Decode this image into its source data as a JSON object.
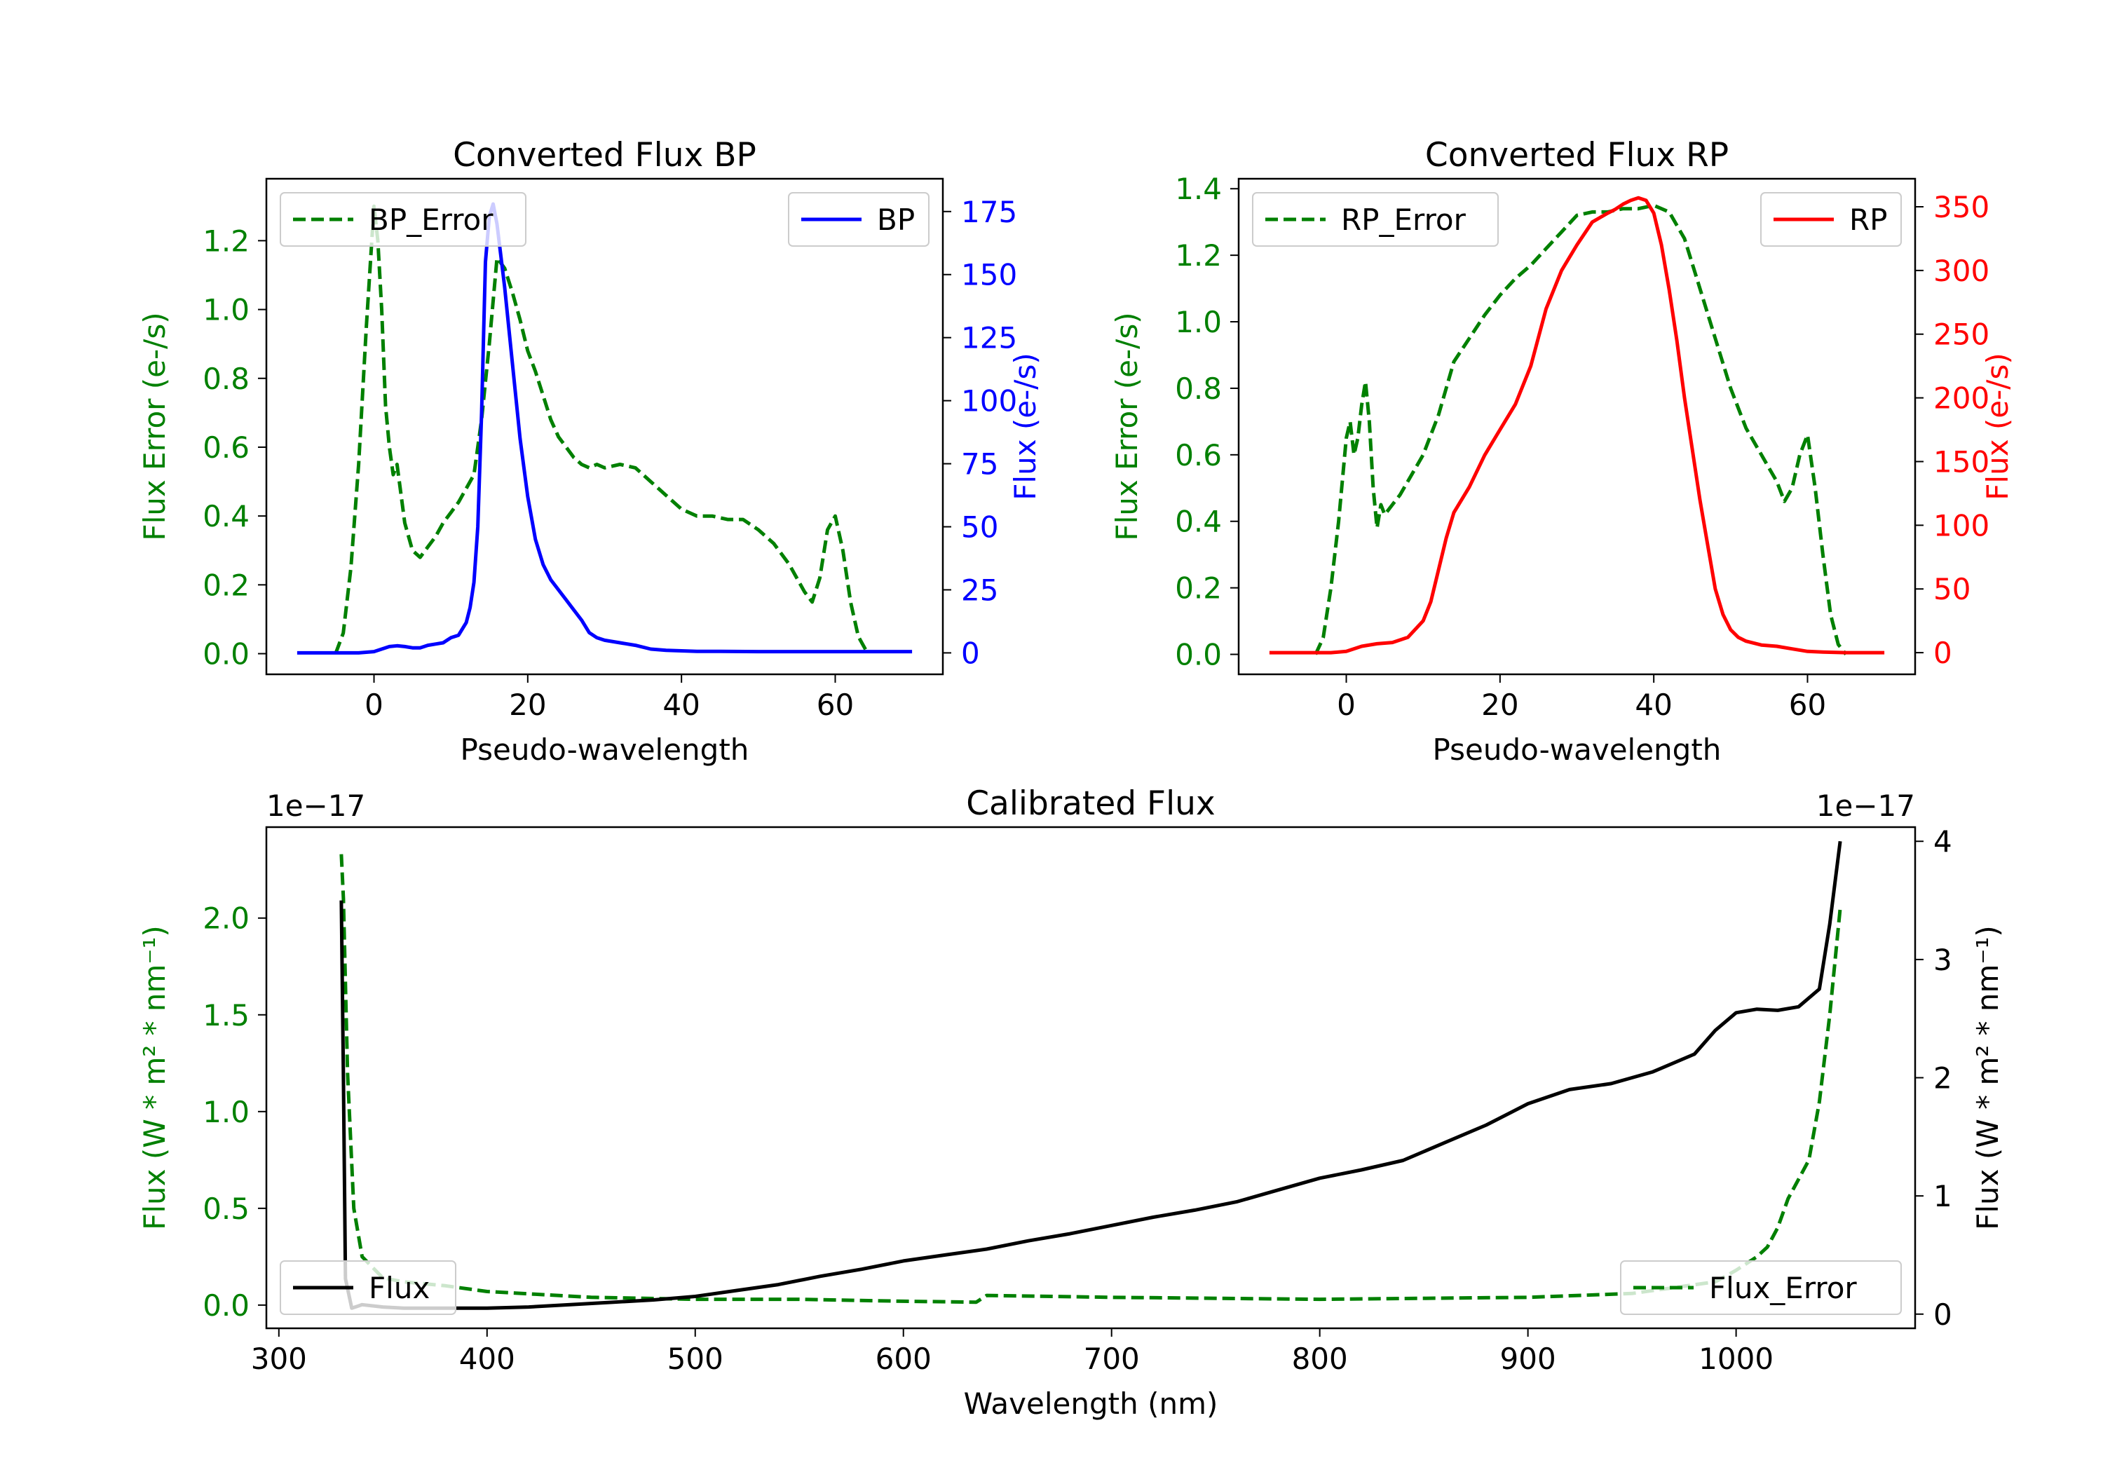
{
  "chart_data": [
    {
      "id": "bp",
      "type": "line",
      "title": "Converted Flux BP",
      "xlabel": "Pseudo-wavelength",
      "ylabel_left": "Flux Error (e-/s)",
      "ylabel_right": "Flux (e-/s)",
      "xlim": [
        -14,
        74
      ],
      "ylim_left": [
        -0.06,
        1.38
      ],
      "ylim_right": [
        -8.5,
        188
      ],
      "xticks": [
        0,
        20,
        40,
        60
      ],
      "yticks_left": [
        0.0,
        0.2,
        0.4,
        0.6,
        0.8,
        1.0,
        1.2
      ],
      "yticks_right": [
        0,
        25,
        50,
        75,
        100,
        125,
        150,
        175
      ],
      "legend_left": {
        "label": "BP_Error",
        "position": "upper-left"
      },
      "legend_right": {
        "label": "BP",
        "position": "upper-right"
      },
      "series": [
        {
          "name": "BP_Error",
          "axis": "left",
          "color": "#008000",
          "dash": "dashed",
          "x": [
            -5,
            -4,
            -3,
            -2,
            -1,
            0,
            0.5,
            1,
            1.5,
            2,
            2.5,
            3,
            4,
            5,
            6,
            7,
            8,
            9,
            10,
            11,
            12,
            13,
            14,
            15,
            16,
            17,
            18,
            19,
            20,
            21,
            22,
            23,
            24,
            25,
            26,
            27,
            28,
            29,
            30,
            32,
            34,
            36,
            38,
            40,
            42,
            44,
            46,
            48,
            50,
            52,
            54,
            55,
            56,
            57,
            58,
            59,
            60,
            61,
            62,
            63,
            64
          ],
          "y": [
            0.0,
            0.06,
            0.25,
            0.55,
            0.95,
            1.3,
            1.2,
            1.0,
            0.72,
            0.6,
            0.52,
            0.55,
            0.38,
            0.3,
            0.28,
            0.31,
            0.34,
            0.38,
            0.41,
            0.44,
            0.48,
            0.52,
            0.68,
            0.9,
            1.15,
            1.12,
            1.05,
            0.97,
            0.88,
            0.82,
            0.75,
            0.68,
            0.63,
            0.6,
            0.57,
            0.55,
            0.54,
            0.55,
            0.54,
            0.55,
            0.54,
            0.5,
            0.46,
            0.42,
            0.4,
            0.4,
            0.39,
            0.39,
            0.36,
            0.32,
            0.26,
            0.22,
            0.18,
            0.15,
            0.22,
            0.36,
            0.4,
            0.3,
            0.15,
            0.05,
            0.01
          ]
        },
        {
          "name": "BP",
          "axis": "right",
          "color": "#0000ff",
          "dash": "solid",
          "x": [
            -10,
            -8,
            -6,
            -4,
            -2,
            0,
            1,
            2,
            3,
            4,
            5,
            6,
            7,
            8,
            9,
            10,
            11,
            12,
            12.5,
            13,
            13.5,
            14,
            14.5,
            15,
            15.5,
            16,
            17,
            18,
            19,
            20,
            21,
            22,
            23,
            24,
            25,
            26,
            27,
            28,
            29,
            30,
            32,
            34,
            36,
            38,
            40,
            42,
            45,
            50,
            55,
            60,
            65,
            70
          ],
          "y": [
            0,
            0,
            0,
            0,
            0,
            0.5,
            1.5,
            2.5,
            2.8,
            2.5,
            2,
            2,
            3,
            3.5,
            4,
            6,
            7,
            12,
            18,
            28,
            50,
            95,
            155,
            173,
            178,
            170,
            145,
            115,
            85,
            62,
            45,
            35,
            29,
            25,
            21,
            17,
            13,
            8,
            6,
            5,
            4,
            3,
            1.5,
            1,
            0.8,
            0.6,
            0.6,
            0.5,
            0.5,
            0.5,
            0.5,
            0.5
          ]
        }
      ]
    },
    {
      "id": "rp",
      "type": "line",
      "title": "Converted Flux RP",
      "xlabel": "Pseudo-wavelength",
      "ylabel_left": "Flux Error (e-/s)",
      "ylabel_right": "Flux (e-/s)",
      "xlim": [
        -14,
        74
      ],
      "ylim_left": [
        -0.06,
        1.43
      ],
      "ylim_right": [
        -17,
        372
      ],
      "xticks": [
        0,
        20,
        40,
        60
      ],
      "yticks_left": [
        0.0,
        0.2,
        0.4,
        0.6,
        0.8,
        1.0,
        1.2,
        1.4
      ],
      "yticks_right": [
        0,
        50,
        100,
        150,
        200,
        250,
        300,
        350
      ],
      "legend_left": {
        "label": "RP_Error",
        "position": "upper-left"
      },
      "legend_right": {
        "label": "RP",
        "position": "upper-right"
      },
      "series": [
        {
          "name": "RP_Error",
          "axis": "left",
          "color": "#008000",
          "dash": "dashed",
          "x": [
            -4,
            -3,
            -2,
            -1,
            0,
            0.5,
            1,
            1.5,
            2,
            2.5,
            3,
            3.5,
            4,
            4.5,
            5,
            6,
            7,
            8,
            10,
            12,
            14,
            16,
            18,
            20,
            22,
            24,
            26,
            28,
            30,
            32,
            34,
            36,
            38,
            40,
            42,
            44,
            46,
            48,
            50,
            52,
            54,
            55,
            56,
            57,
            58,
            59,
            60,
            61,
            62,
            63,
            64,
            65
          ],
          "y": [
            0.0,
            0.05,
            0.2,
            0.4,
            0.65,
            0.7,
            0.6,
            0.65,
            0.75,
            0.82,
            0.7,
            0.5,
            0.38,
            0.45,
            0.42,
            0.45,
            0.48,
            0.52,
            0.6,
            0.72,
            0.88,
            0.95,
            1.02,
            1.08,
            1.13,
            1.17,
            1.22,
            1.27,
            1.32,
            1.33,
            1.33,
            1.34,
            1.34,
            1.35,
            1.33,
            1.25,
            1.1,
            0.95,
            0.8,
            0.68,
            0.6,
            0.56,
            0.52,
            0.46,
            0.5,
            0.6,
            0.66,
            0.5,
            0.3,
            0.12,
            0.03,
            0.0
          ]
        },
        {
          "name": "RP",
          "axis": "right",
          "color": "#ff0000",
          "dash": "solid",
          "x": [
            -10,
            -5,
            -2,
            0,
            2,
            4,
            6,
            8,
            10,
            11,
            12,
            13,
            14,
            16,
            18,
            20,
            22,
            24,
            26,
            28,
            30,
            32,
            34,
            35,
            36,
            37,
            38,
            39,
            40,
            41,
            42,
            43,
            44,
            45,
            46,
            47,
            48,
            49,
            50,
            51,
            52,
            54,
            56,
            58,
            60,
            62,
            65,
            70
          ],
          "y": [
            0,
            0,
            0,
            1,
            5,
            7,
            8,
            12,
            25,
            40,
            65,
            90,
            110,
            130,
            155,
            175,
            195,
            225,
            270,
            300,
            320,
            338,
            345,
            348,
            352,
            355,
            357,
            355,
            345,
            320,
            285,
            245,
            200,
            160,
            120,
            85,
            50,
            30,
            18,
            12,
            9,
            6,
            5,
            3,
            1,
            0.5,
            0,
            0
          ]
        }
      ]
    },
    {
      "id": "cal",
      "type": "line",
      "title": "Calibrated Flux",
      "xlabel": "Wavelength (nm)",
      "ylabel_left": "Flux (W * m² * nm⁻¹)",
      "ylabel_right": "Flux (W * m² * nm⁻¹)",
      "offset_left": "1e−17",
      "offset_right": "1e−17",
      "xlim": [
        294,
        1086
      ],
      "ylim_left": [
        -0.12,
        2.47
      ],
      "ylim_right": [
        -0.12,
        4.12
      ],
      "xticks": [
        300,
        400,
        500,
        600,
        700,
        800,
        900,
        1000
      ],
      "yticks_left": [
        0.0,
        0.5,
        1.0,
        1.5,
        2.0
      ],
      "yticks_right": [
        0,
        1,
        2,
        3,
        4
      ],
      "legend_left": {
        "label": "Flux",
        "position": "lower-left"
      },
      "legend_right": {
        "label": "Flux_Error",
        "position": "lower-right"
      },
      "series": [
        {
          "name": "Flux_Error",
          "axis": "left",
          "color": "#008000",
          "dash": "dashed",
          "x": [
            330,
            331,
            333,
            336,
            340,
            350,
            360,
            380,
            400,
            450,
            500,
            550,
            600,
            635,
            640,
            700,
            800,
            900,
            950,
            990,
            1000,
            1010,
            1015,
            1020,
            1025,
            1030,
            1035,
            1040,
            1045,
            1050
          ],
          "y": [
            2.33,
            2.1,
            1.2,
            0.5,
            0.25,
            0.14,
            0.12,
            0.1,
            0.07,
            0.04,
            0.03,
            0.03,
            0.02,
            0.015,
            0.05,
            0.04,
            0.03,
            0.04,
            0.06,
            0.12,
            0.18,
            0.25,
            0.3,
            0.4,
            0.55,
            0.65,
            0.75,
            1.05,
            1.5,
            2.05
          ]
        },
        {
          "name": "Flux",
          "axis": "right",
          "color": "#000000",
          "dash": "solid",
          "x": [
            330,
            331,
            332,
            335,
            340,
            350,
            360,
            380,
            400,
            420,
            440,
            460,
            480,
            500,
            520,
            540,
            560,
            580,
            600,
            620,
            640,
            660,
            680,
            700,
            720,
            740,
            760,
            780,
            800,
            820,
            840,
            860,
            880,
            900,
            920,
            940,
            960,
            980,
            990,
            1000,
            1010,
            1020,
            1030,
            1040,
            1045,
            1050
          ],
          "y": [
            3.5,
            2.0,
            0.3,
            0.05,
            0.08,
            0.06,
            0.05,
            0.05,
            0.05,
            0.06,
            0.08,
            0.1,
            0.12,
            0.15,
            0.2,
            0.25,
            0.32,
            0.38,
            0.45,
            0.5,
            0.55,
            0.62,
            0.68,
            0.75,
            0.82,
            0.88,
            0.95,
            1.05,
            1.15,
            1.22,
            1.3,
            1.45,
            1.6,
            1.78,
            1.9,
            1.95,
            2.05,
            2.2,
            2.4,
            2.55,
            2.58,
            2.57,
            2.6,
            2.75,
            3.3,
            4.0
          ]
        }
      ]
    }
  ]
}
